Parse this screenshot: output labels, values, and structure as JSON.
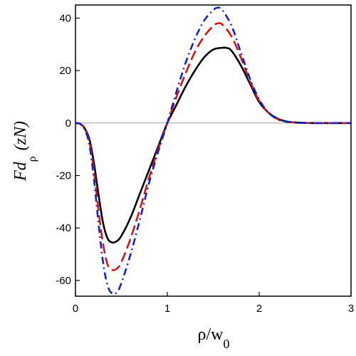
{
  "chart_data": {
    "type": "line",
    "xlim": [
      0,
      3
    ],
    "ylim": [
      -66,
      45
    ],
    "x_ticks": [
      0,
      1,
      2,
      3
    ],
    "y_ticks": [
      -60,
      -40,
      -20,
      0,
      20,
      40
    ],
    "x_tick_labels": [
      "0",
      "1",
      "2",
      "3"
    ],
    "y_tick_labels": [
      "-60",
      "-40",
      "-20",
      "0",
      "20",
      "40"
    ],
    "xlabel": {
      "main": "ρ/w",
      "sub": "0"
    },
    "ylabel": {
      "main": "Fd",
      "sub": "ρ",
      "unit": "(zN)"
    },
    "grid": false,
    "legend": "none",
    "series": [
      {
        "color": "#000000",
        "dash": "solid",
        "x": [
          0,
          0.05,
          0.1,
          0.15,
          0.2,
          0.25,
          0.3,
          0.35,
          0.4,
          0.45,
          0.5,
          0.6,
          0.7,
          0.8,
          0.9,
          1.0,
          1.1,
          1.2,
          1.3,
          1.4,
          1.5,
          1.6,
          1.65,
          1.7,
          1.8,
          1.9,
          2.0,
          2.1,
          2.2,
          2.3,
          2.4,
          2.5,
          2.6,
          2.8,
          3.0
        ],
        "y": [
          0,
          -0.3,
          -2,
          -6,
          -15,
          -27,
          -38,
          -44,
          -45.5,
          -45,
          -43,
          -36,
          -27,
          -18,
          -9,
          0,
          7,
          14,
          20,
          25,
          28,
          28.7,
          28.6,
          27.5,
          22,
          15,
          8,
          4,
          1.7,
          0.6,
          0.2,
          0.05,
          0,
          0,
          0
        ]
      },
      {
        "color": "#dd1111",
        "dash": "long-dash",
        "x": [
          0,
          0.05,
          0.1,
          0.15,
          0.2,
          0.25,
          0.3,
          0.35,
          0.4,
          0.45,
          0.5,
          0.6,
          0.7,
          0.8,
          0.9,
          1.0,
          1.1,
          1.2,
          1.3,
          1.4,
          1.5,
          1.55,
          1.6,
          1.7,
          1.8,
          1.9,
          2.0,
          2.1,
          2.2,
          2.3,
          2.4,
          2.5,
          2.6,
          2.8,
          3.0
        ],
        "y": [
          0,
          -0.3,
          -2,
          -7,
          -18,
          -33,
          -46,
          -54,
          -56,
          -55.5,
          -53,
          -44,
          -33,
          -21,
          -10,
          0,
          10,
          19,
          27,
          33,
          37,
          38,
          37.5,
          33,
          25,
          16,
          8.5,
          4,
          1.5,
          0.5,
          0.2,
          0.05,
          0,
          0,
          0
        ]
      },
      {
        "color": "#1122cc",
        "dash": "dash-dot",
        "x": [
          0,
          0.05,
          0.1,
          0.15,
          0.2,
          0.25,
          0.3,
          0.35,
          0.4,
          0.45,
          0.5,
          0.6,
          0.7,
          0.8,
          0.9,
          1.0,
          1.1,
          1.2,
          1.3,
          1.4,
          1.5,
          1.55,
          1.6,
          1.7,
          1.8,
          1.9,
          2.0,
          2.1,
          2.2,
          2.3,
          2.4,
          2.5,
          2.6,
          2.8,
          3.0
        ],
        "y": [
          0,
          -0.3,
          -2.5,
          -8,
          -21,
          -38,
          -53,
          -62,
          -65,
          -64.5,
          -61,
          -50,
          -37,
          -23,
          -11,
          0,
          12,
          23,
          32,
          39,
          43,
          44,
          43,
          37,
          27,
          17,
          9,
          4,
          1.5,
          0.5,
          0.2,
          0.05,
          0,
          0,
          0
        ]
      }
    ]
  }
}
